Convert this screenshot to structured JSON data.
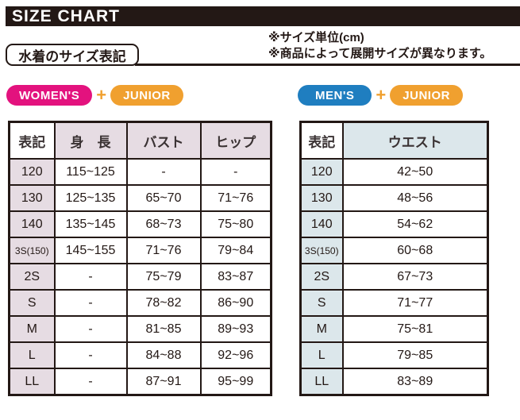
{
  "header": {
    "title": "SIZE CHART",
    "section_label": "水着のサイズ表記",
    "notes": [
      "※サイズ単位(cm)",
      "※商品によって展開サイズが異なります。"
    ]
  },
  "womens": {
    "badge1": "WOMEN'S",
    "plus": "+",
    "badge2": "JUNIOR"
  },
  "mens": {
    "badge1": "MEN'S",
    "plus": "+",
    "badge2": "JUNIOR"
  },
  "chart_data": [
    {
      "type": "table",
      "title": "WOMEN'S + JUNIOR (cm)",
      "headers": [
        "表記",
        "身　長",
        "バスト",
        "ヒップ"
      ],
      "rows": [
        [
          "120",
          "115~125",
          "-",
          "-"
        ],
        [
          "130",
          "125~135",
          "65~70",
          "71~76"
        ],
        [
          "140",
          "135~145",
          "68~73",
          "75~80"
        ],
        [
          "3S(150)",
          "145~155",
          "71~76",
          "79~84"
        ],
        [
          "2S",
          "-",
          "75~79",
          "83~87"
        ],
        [
          "S",
          "-",
          "78~82",
          "86~90"
        ],
        [
          "M",
          "-",
          "81~85",
          "89~93"
        ],
        [
          "L",
          "-",
          "84~88",
          "92~96"
        ],
        [
          "LL",
          "-",
          "87~91",
          "95~99"
        ]
      ]
    },
    {
      "type": "table",
      "title": "MEN'S + JUNIOR (cm)",
      "headers": [
        "表記",
        "ウエスト"
      ],
      "rows": [
        [
          "120",
          "42~50"
        ],
        [
          "130",
          "48~56"
        ],
        [
          "140",
          "54~62"
        ],
        [
          "3S(150)",
          "60~68"
        ],
        [
          "2S",
          "67~73"
        ],
        [
          "S",
          "71~77"
        ],
        [
          "M",
          "75~81"
        ],
        [
          "L",
          "79~85"
        ],
        [
          "LL",
          "83~89"
        ]
      ]
    }
  ],
  "colors": {
    "banner_bg": "#231815",
    "womens_accent": "#e3127e",
    "mens_accent": "#1f7ec0",
    "junior_accent": "#f0a02f",
    "plus_color": "#f0a02f",
    "womens_header_bg": "#e6dce3",
    "mens_header_bg": "#dce7eb"
  }
}
